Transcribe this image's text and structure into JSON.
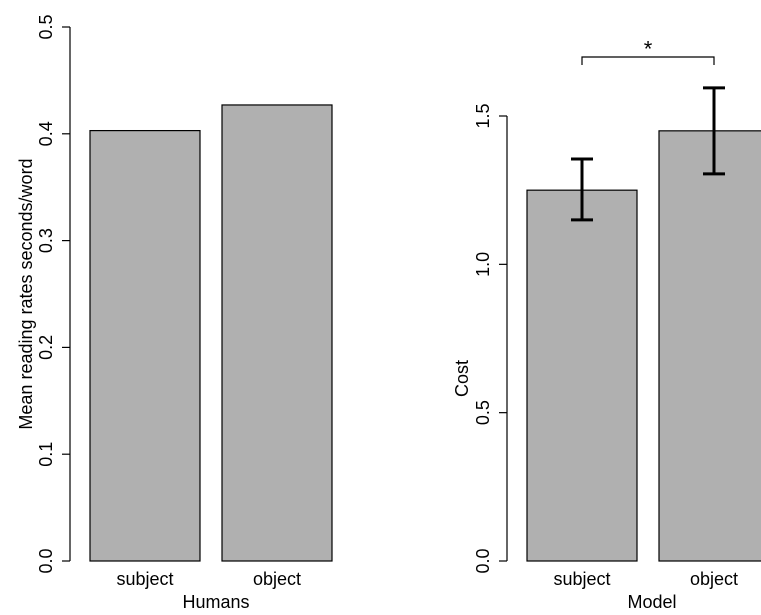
{
  "chart_data": [
    {
      "type": "bar",
      "categories": [
        "subject",
        "object"
      ],
      "values": [
        0.403,
        0.427
      ],
      "xlabel": "Humans",
      "ylabel": "Mean reading rates seconds/word",
      "ylim": [
        0,
        0.5
      ],
      "yticks": [
        "0.0",
        "0.1",
        "0.2",
        "0.3",
        "0.4",
        "0.5"
      ],
      "ytick_values": [
        0,
        0.1,
        0.2,
        0.3,
        0.4,
        0.5
      ],
      "bar_color": "#b0b0b0",
      "grid": false
    },
    {
      "type": "bar",
      "categories": [
        "subject",
        "object"
      ],
      "values": [
        1.25,
        1.45
      ],
      "error_low": [
        1.15,
        1.305
      ],
      "error_high": [
        1.355,
        1.595
      ],
      "xlabel": "Model",
      "ylabel": "Cost",
      "ylim": [
        0,
        1.5
      ],
      "yticks": [
        "0.0",
        "0.5",
        "1.0",
        "1.5"
      ],
      "ytick_values": [
        0,
        0.5,
        1.0,
        1.5
      ],
      "significance": {
        "between": [
          "subject",
          "object"
        ],
        "label": "*"
      },
      "bar_color": "#b0b0b0",
      "grid": false
    }
  ]
}
